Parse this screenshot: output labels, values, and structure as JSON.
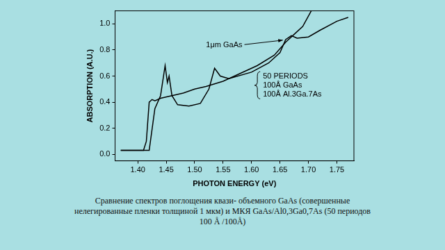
{
  "chart_data": {
    "type": "line",
    "x_label": "PHOTON ENERGY (eV)",
    "y_label": "ABSORPTION (A.U.)",
    "xlim": [
      1.36,
      1.78
    ],
    "ylim": [
      -0.05,
      1.1
    ],
    "xticks": [
      {
        "value": 1.4,
        "label": "1.40"
      },
      1.45,
      {
        "value": 1.5,
        "label": "1.50"
      },
      1.55,
      {
        "value": 1.6,
        "label": "1.60"
      },
      1.65,
      {
        "value": 1.7,
        "label": "1.70"
      },
      1.75
    ],
    "yticks": [
      {
        "value": 0,
        "label": "0.0"
      },
      0.2,
      0.4,
      0.6,
      0.8,
      {
        "value": 1,
        "label": "1.0"
      }
    ],
    "grid": false,
    "series": [
      {
        "color": "#000000",
        "x": [
          1.37,
          1.39,
          1.41,
          1.415,
          1.42,
          1.425,
          1.43,
          1.44,
          1.46,
          1.48,
          1.5,
          1.52,
          1.55,
          1.58,
          1.61,
          1.64,
          1.66,
          1.675,
          1.69,
          1.705
        ],
        "values": [
          0.03,
          0.03,
          0.03,
          0.1,
          0.4,
          0.42,
          0.41,
          0.43,
          0.45,
          0.47,
          0.5,
          0.52,
          0.56,
          0.62,
          0.68,
          0.76,
          0.86,
          0.92,
          0.98,
          1.1
        ]
      },
      {
        "color": "#000000",
        "x": [
          1.37,
          1.4,
          1.42,
          1.43,
          1.44,
          1.448,
          1.452,
          1.455,
          1.46,
          1.47,
          1.49,
          1.51,
          1.525,
          1.535,
          1.545,
          1.56,
          1.6,
          1.63,
          1.65,
          1.66,
          1.67,
          1.68,
          1.7,
          1.72,
          1.75,
          1.77
        ],
        "values": [
          0.03,
          0.03,
          0.03,
          0.35,
          0.45,
          0.68,
          0.55,
          0.6,
          0.45,
          0.38,
          0.37,
          0.39,
          0.5,
          0.66,
          0.6,
          0.58,
          0.63,
          0.7,
          0.78,
          0.88,
          0.91,
          0.89,
          0.9,
          0.95,
          1.02,
          1.05
        ]
      }
    ],
    "annotations": [
      {
        "text": "1μm GaAs",
        "x": 1.52,
        "y": 0.82,
        "arrow_to": [
          1.655,
          0.875
        ]
      },
      {
        "lines": [
          "50 PERIODS",
          "100Å GaAs",
          "100Å Al.3Ga.7As"
        ],
        "x": 1.62,
        "y": 0.58,
        "bracket": true
      }
    ],
    "caption": "Сравнение спектров поглощения квази- объемного GaAs (совершенные нелегированные пленки толщиной 1 мкм) и МКЯ GaAs/Al0,3Ga0,7As (50 периодов 100 Å /100Å)"
  }
}
